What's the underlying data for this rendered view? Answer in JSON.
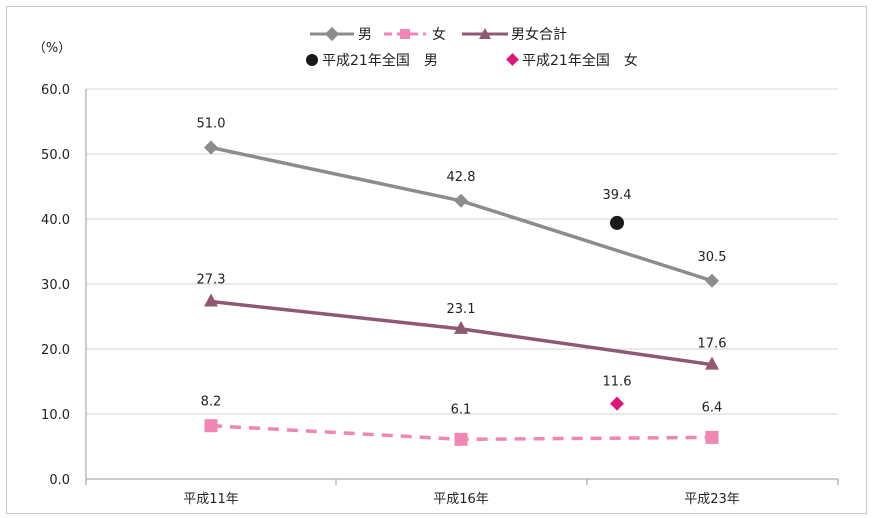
{
  "chart_data": {
    "type": "line",
    "y_unit": "（%）",
    "categories": [
      "平成11年",
      "平成16年",
      "平成23年"
    ],
    "ylim": [
      0,
      60
    ],
    "yticks": [
      "0.0",
      "10.0",
      "20.0",
      "30.0",
      "40.0",
      "50.0",
      "60.0"
    ],
    "grid": true,
    "legend_position": "top",
    "series": [
      {
        "name": "男",
        "values": [
          51.0,
          42.8,
          30.5
        ],
        "labels": [
          "51.0",
          "42.8",
          "30.5"
        ],
        "color": "#8c8c8c",
        "marker": "diamond",
        "dash": false
      },
      {
        "name": "女",
        "values": [
          8.2,
          6.1,
          6.4
        ],
        "labels": [
          "8.2",
          "6.1",
          "6.4"
        ],
        "color": "#ef86b4",
        "marker": "square",
        "dash": true
      },
      {
        "name": "男女合計",
        "values": [
          27.3,
          23.1,
          17.6
        ],
        "labels": [
          "27.3",
          "23.1",
          "17.6"
        ],
        "color": "#8f5873",
        "marker": "triangle",
        "dash": false
      }
    ],
    "reference_points": [
      {
        "name": "平成21年全国　男",
        "value": 39.4,
        "label": "39.4",
        "color": "#1a1a1a",
        "marker": "circle"
      },
      {
        "name": "平成21年全国　女",
        "value": 11.6,
        "label": "11.6",
        "color": "#e0157a",
        "marker": "diamond"
      }
    ]
  }
}
